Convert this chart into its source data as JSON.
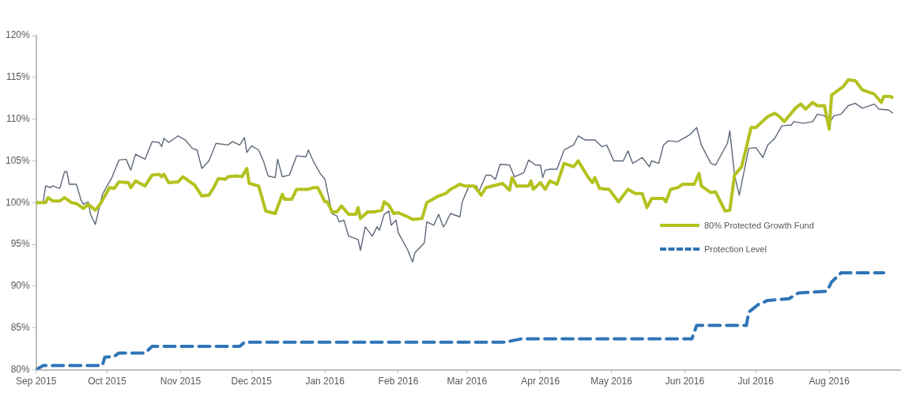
{
  "chart_data": {
    "type": "line",
    "xlim": [
      "2015-09-01",
      "2016-08-31"
    ],
    "xticks": [
      {
        "value": "2015-09-01",
        "label": "Sep 2015"
      },
      {
        "value": "2015-10-01",
        "label": "Oct 2015"
      },
      {
        "value": "2015-11-01",
        "label": "Nov 2015"
      },
      {
        "value": "2015-12-01",
        "label": "Dec 2015"
      },
      {
        "value": "2016-01-01",
        "label": "Jan 2016"
      },
      {
        "value": "2016-02-01",
        "label": "Feb 2016"
      },
      {
        "value": "2016-03-01",
        "label": "Mar 2016"
      },
      {
        "value": "2016-04-01",
        "label": "Apr 2016"
      },
      {
        "value": "2016-05-01",
        "label": "May 2016"
      },
      {
        "value": "2016-06-01",
        "label": "Jun 2016"
      },
      {
        "value": "2016-07-01",
        "label": "Jul 2016"
      },
      {
        "value": "2016-08-01",
        "label": "Aug 2016"
      }
    ],
    "ylim": [
      80,
      120
    ],
    "yticks": [
      {
        "value": 80,
        "label": "80%"
      },
      {
        "value": 85,
        "label": "85%"
      },
      {
        "value": 90,
        "label": "90%"
      },
      {
        "value": 95,
        "label": "95%"
      },
      {
        "value": 100,
        "label": "100%"
      },
      {
        "value": 105,
        "label": "105%"
      },
      {
        "value": 110,
        "label": "110%"
      },
      {
        "value": 115,
        "label": "115%"
      },
      {
        "value": 120,
        "label": "120%"
      }
    ],
    "grid": false,
    "legend": "right",
    "marker": "none",
    "series": [
      {
        "name": "80% Protected Growth Fund",
        "color": "#b3c21f",
        "line_style": "solid",
        "x": [
          "2015-09-01",
          "2015-09-05",
          "2015-09-06",
          "2015-09-08",
          "2015-09-11",
          "2015-09-13",
          "2015-09-16",
          "2015-09-18",
          "2015-09-21",
          "2015-09-23",
          "2015-09-26",
          "2015-09-28",
          "2015-10-02",
          "2015-10-04",
          "2015-10-06",
          "2015-10-10",
          "2015-10-11",
          "2015-10-13",
          "2015-10-17",
          "2015-10-20",
          "2015-10-23",
          "2015-10-24",
          "2015-10-25",
          "2015-10-27",
          "2015-10-31",
          "2015-11-02",
          "2015-11-07",
          "2015-11-10",
          "2015-11-13",
          "2015-11-15",
          "2015-11-17",
          "2015-11-20",
          "2015-11-21",
          "2015-11-25",
          "2015-11-27",
          "2015-11-29",
          "2015-11-30",
          "2015-12-04",
          "2015-12-07",
          "2015-12-11",
          "2015-12-14",
          "2015-12-15",
          "2015-12-18",
          "2015-12-20",
          "2015-12-25",
          "2015-12-27",
          "2015-12-29",
          "2016-01-01",
          "2016-01-02",
          "2016-01-04",
          "2016-01-06",
          "2016-01-08",
          "2016-01-11",
          "2016-01-14",
          "2016-01-15",
          "2016-01-16",
          "2016-01-19",
          "2016-01-22",
          "2016-01-25",
          "2016-01-26",
          "2016-01-28",
          "2016-01-30",
          "2016-02-01",
          "2016-02-05",
          "2016-02-07",
          "2016-02-11",
          "2016-02-13",
          "2016-02-18",
          "2016-02-21",
          "2016-02-23",
          "2016-02-27",
          "2016-02-29",
          "2016-03-04",
          "2016-03-07",
          "2016-03-09",
          "2016-03-16",
          "2016-03-19",
          "2016-03-20",
          "2016-03-22",
          "2016-03-27",
          "2016-03-28",
          "2016-03-29",
          "2016-04-01",
          "2016-04-03",
          "2016-04-05",
          "2016-04-08",
          "2016-04-11",
          "2016-04-15",
          "2016-04-17",
          "2016-04-21",
          "2016-04-23",
          "2016-04-24",
          "2016-04-26",
          "2016-04-30",
          "2016-05-04",
          "2016-05-08",
          "2016-05-11",
          "2016-05-14",
          "2016-05-16",
          "2016-05-18",
          "2016-05-23",
          "2016-05-24",
          "2016-05-26",
          "2016-05-29",
          "2016-05-31",
          "2016-06-05",
          "2016-06-07",
          "2016-06-08",
          "2016-06-12",
          "2016-06-14",
          "2016-06-18",
          "2016-06-20",
          "2016-06-22",
          "2016-06-25",
          "2016-06-29",
          "2016-07-01",
          "2016-07-06",
          "2016-07-09",
          "2016-07-11",
          "2016-07-13",
          "2016-07-18",
          "2016-07-20",
          "2016-07-22",
          "2016-07-25",
          "2016-07-27",
          "2016-07-30",
          "2016-08-01",
          "2016-08-02",
          "2016-08-07",
          "2016-08-09",
          "2016-08-12",
          "2016-08-15",
          "2016-08-20",
          "2016-08-23",
          "2016-08-24",
          "2016-08-27",
          "2016-08-28"
        ],
        "values": [
          100,
          100,
          100.6,
          100.2,
          100.2,
          100.6,
          100,
          99.9,
          99.3,
          99.8,
          99.1,
          99.8,
          101.8,
          101.7,
          102.5,
          102.4,
          101.8,
          102.6,
          102.0,
          103.3,
          103.4,
          103.1,
          103.4,
          102.4,
          102.5,
          103.1,
          102.1,
          100.8,
          100.9,
          101.8,
          102.9,
          102.8,
          103.1,
          103.2,
          103.1,
          104.1,
          102.3,
          102.0,
          99.0,
          98.7,
          101.0,
          100.4,
          100.4,
          101.6,
          101.6,
          101.8,
          101.8,
          100.1,
          100.1,
          98.9,
          98.9,
          99.6,
          98.6,
          98.6,
          99.4,
          98.1,
          98.9,
          98.9,
          99.1,
          100.1,
          99.7,
          98.7,
          98.8,
          98.3,
          98.0,
          98.1,
          100.0,
          100.8,
          101.1,
          101.6,
          102.2,
          102.0,
          102.0,
          100.9,
          101.8,
          102.3,
          101.5,
          103.0,
          102.0,
          102.0,
          102.6,
          101.6,
          102.4,
          101.6,
          102.6,
          102.2,
          104.7,
          104.3,
          105.0,
          103.1,
          102.4,
          103.0,
          101.7,
          101.6,
          100.1,
          101.6,
          101.1,
          101.1,
          99.4,
          100.5,
          100.5,
          100.1,
          101.6,
          101.8,
          102.2,
          102.2,
          103.5,
          102.0,
          101.2,
          101.3,
          99.0,
          99.1,
          103.3,
          104.3,
          109.0,
          109.0,
          110.3,
          110.7,
          110.3,
          109.7,
          111.4,
          111.8,
          111.2,
          112.0,
          111.6,
          111.6,
          108.8,
          112.9,
          113.9,
          114.7,
          114.6,
          113.5,
          113.0,
          112.0,
          112.7,
          112.7,
          112.5
        ]
      },
      {
        "color": "#5c6878",
        "line_style": "solid",
        "x": [
          "2015-09-01",
          "2015-09-04",
          "2015-09-05",
          "2015-09-07",
          "2015-09-08",
          "2015-09-11",
          "2015-09-13",
          "2015-09-14",
          "2015-09-15",
          "2015-09-18",
          "2015-09-20",
          "2015-09-21",
          "2015-09-23",
          "2015-09-24",
          "2015-09-26",
          "2015-09-29",
          "2015-10-03",
          "2015-10-06",
          "2015-10-09",
          "2015-10-11",
          "2015-10-13",
          "2015-10-17",
          "2015-10-20",
          "2015-10-23",
          "2015-10-24",
          "2015-10-25",
          "2015-10-27",
          "2015-10-31",
          "2015-11-03",
          "2015-11-06",
          "2015-11-08",
          "2015-11-10",
          "2015-11-13",
          "2015-11-16",
          "2015-11-21",
          "2015-11-23",
          "2015-11-26",
          "2015-11-28",
          "2015-11-29",
          "2015-12-01",
          "2015-12-04",
          "2015-12-06",
          "2015-12-08",
          "2015-12-11",
          "2015-12-12",
          "2015-12-14",
          "2015-12-17",
          "2015-12-20",
          "2015-12-24",
          "2015-12-25",
          "2015-12-27",
          "2015-12-30",
          "2016-01-01",
          "2016-01-04",
          "2016-01-06",
          "2016-01-07",
          "2016-01-09",
          "2016-01-11",
          "2016-01-15",
          "2016-01-16",
          "2016-01-18",
          "2016-01-21",
          "2016-01-23",
          "2016-01-24",
          "2016-01-26",
          "2016-01-28",
          "2016-01-29",
          "2016-01-31",
          "2016-02-01",
          "2016-02-05",
          "2016-02-07",
          "2016-02-08",
          "2016-02-12",
          "2016-02-13",
          "2016-02-16",
          "2016-02-18",
          "2016-02-20",
          "2016-02-21",
          "2016-02-23",
          "2016-02-27",
          "2016-02-28",
          "2016-03-02",
          "2016-03-05",
          "2016-03-06",
          "2016-03-09",
          "2016-03-11",
          "2016-03-13",
          "2016-03-15",
          "2016-03-19",
          "2016-03-21",
          "2016-03-25",
          "2016-03-27",
          "2016-03-30",
          "2016-04-01",
          "2016-04-02",
          "2016-04-03",
          "2016-04-05",
          "2016-04-08",
          "2016-04-11",
          "2016-04-15",
          "2016-04-17",
          "2016-04-20",
          "2016-04-24",
          "2016-04-27",
          "2016-04-29",
          "2016-05-02",
          "2016-05-06",
          "2016-05-08",
          "2016-05-10",
          "2016-05-14",
          "2016-05-17",
          "2016-05-18",
          "2016-05-21",
          "2016-05-23",
          "2016-05-25",
          "2016-05-29",
          "2016-06-03",
          "2016-06-06",
          "2016-06-08",
          "2016-06-12",
          "2016-06-14",
          "2016-06-19",
          "2016-06-20",
          "2016-06-22",
          "2016-06-24",
          "2016-06-28",
          "2016-07-01",
          "2016-07-04",
          "2016-07-06",
          "2016-07-09",
          "2016-07-12",
          "2016-07-16",
          "2016-07-17",
          "2016-07-21",
          "2016-07-25",
          "2016-07-27",
          "2016-07-30",
          "2016-08-01",
          "2016-08-03",
          "2016-08-06",
          "2016-08-09",
          "2016-08-12",
          "2016-08-15",
          "2016-08-20",
          "2016-08-22",
          "2016-08-26",
          "2016-08-28"
        ],
        "values": [
          100,
          100.1,
          102.0,
          101.8,
          102.0,
          101.7,
          103.7,
          103.7,
          102.2,
          102.2,
          100.3,
          99.8,
          100.1,
          98.6,
          97.4,
          101.0,
          103.0,
          105.1,
          105.2,
          103.9,
          105.8,
          105.2,
          107.3,
          107.2,
          106.7,
          107.7,
          107.2,
          108.0,
          107.5,
          106.5,
          106.3,
          104.1,
          105.0,
          107.1,
          106.9,
          107.3,
          106.9,
          107.8,
          106.0,
          106.8,
          106.3,
          105.0,
          103.2,
          103.0,
          105.2,
          103.1,
          103.3,
          105.6,
          105.5,
          106.3,
          105.0,
          103.5,
          102.8,
          98.7,
          98.4,
          97.7,
          97.9,
          96.0,
          95.6,
          94.3,
          97.1,
          96.0,
          97.1,
          96.7,
          98.6,
          99.0,
          97.3,
          97.9,
          96.4,
          94.3,
          92.9,
          94.0,
          95.2,
          97.7,
          97.3,
          98.6,
          97.1,
          97.5,
          98.7,
          98.3,
          100.1,
          102.1,
          102.0,
          101.3,
          103.3,
          103.3,
          102.8,
          104.6,
          104.5,
          103.1,
          103.6,
          105.1,
          104.5,
          104.5,
          103.0,
          103.9,
          104.0,
          104.0,
          106.3,
          106.9,
          108.0,
          107.5,
          107.5,
          106.7,
          106.9,
          105.0,
          105.0,
          106.2,
          104.7,
          105.4,
          104.3,
          105.0,
          104.7,
          106.9,
          107.4,
          107.3,
          108.1,
          109.0,
          106.9,
          104.7,
          104.5,
          107.1,
          108.6,
          103.3,
          100.9,
          106.5,
          106.6,
          105.4,
          106.9,
          107.7,
          109.2,
          109.3,
          109.7,
          109.5,
          109.7,
          110.6,
          110.4,
          109.5,
          110.4,
          110.6,
          111.6,
          111.9,
          111.3,
          111.8,
          111.2,
          111.1,
          110.7
        ]
      },
      {
        "name": "Protection Level",
        "color": "#2e75b6",
        "line_style": "dashed",
        "x": [
          "2015-09-01",
          "2015-09-04",
          "2015-09-29",
          "2015-09-30",
          "2015-10-04",
          "2015-10-06",
          "2015-10-17",
          "2015-10-20",
          "2015-11-26",
          "2015-11-28",
          "2016-03-17",
          "2016-03-24",
          "2016-06-04",
          "2016-06-06",
          "2016-06-27",
          "2016-06-28",
          "2016-07-02",
          "2016-07-06",
          "2016-07-15",
          "2016-07-19",
          "2016-07-31",
          "2016-08-02",
          "2016-08-06",
          "2016-08-24"
        ],
        "values": [
          80.0,
          80.5,
          80.5,
          81.5,
          81.6,
          82.0,
          82.0,
          82.8,
          82.8,
          83.3,
          83.3,
          83.7,
          83.7,
          85.3,
          85.3,
          86.9,
          87.8,
          88.3,
          88.5,
          89.2,
          89.4,
          90.5,
          91.6,
          91.6
        ]
      }
    ]
  }
}
